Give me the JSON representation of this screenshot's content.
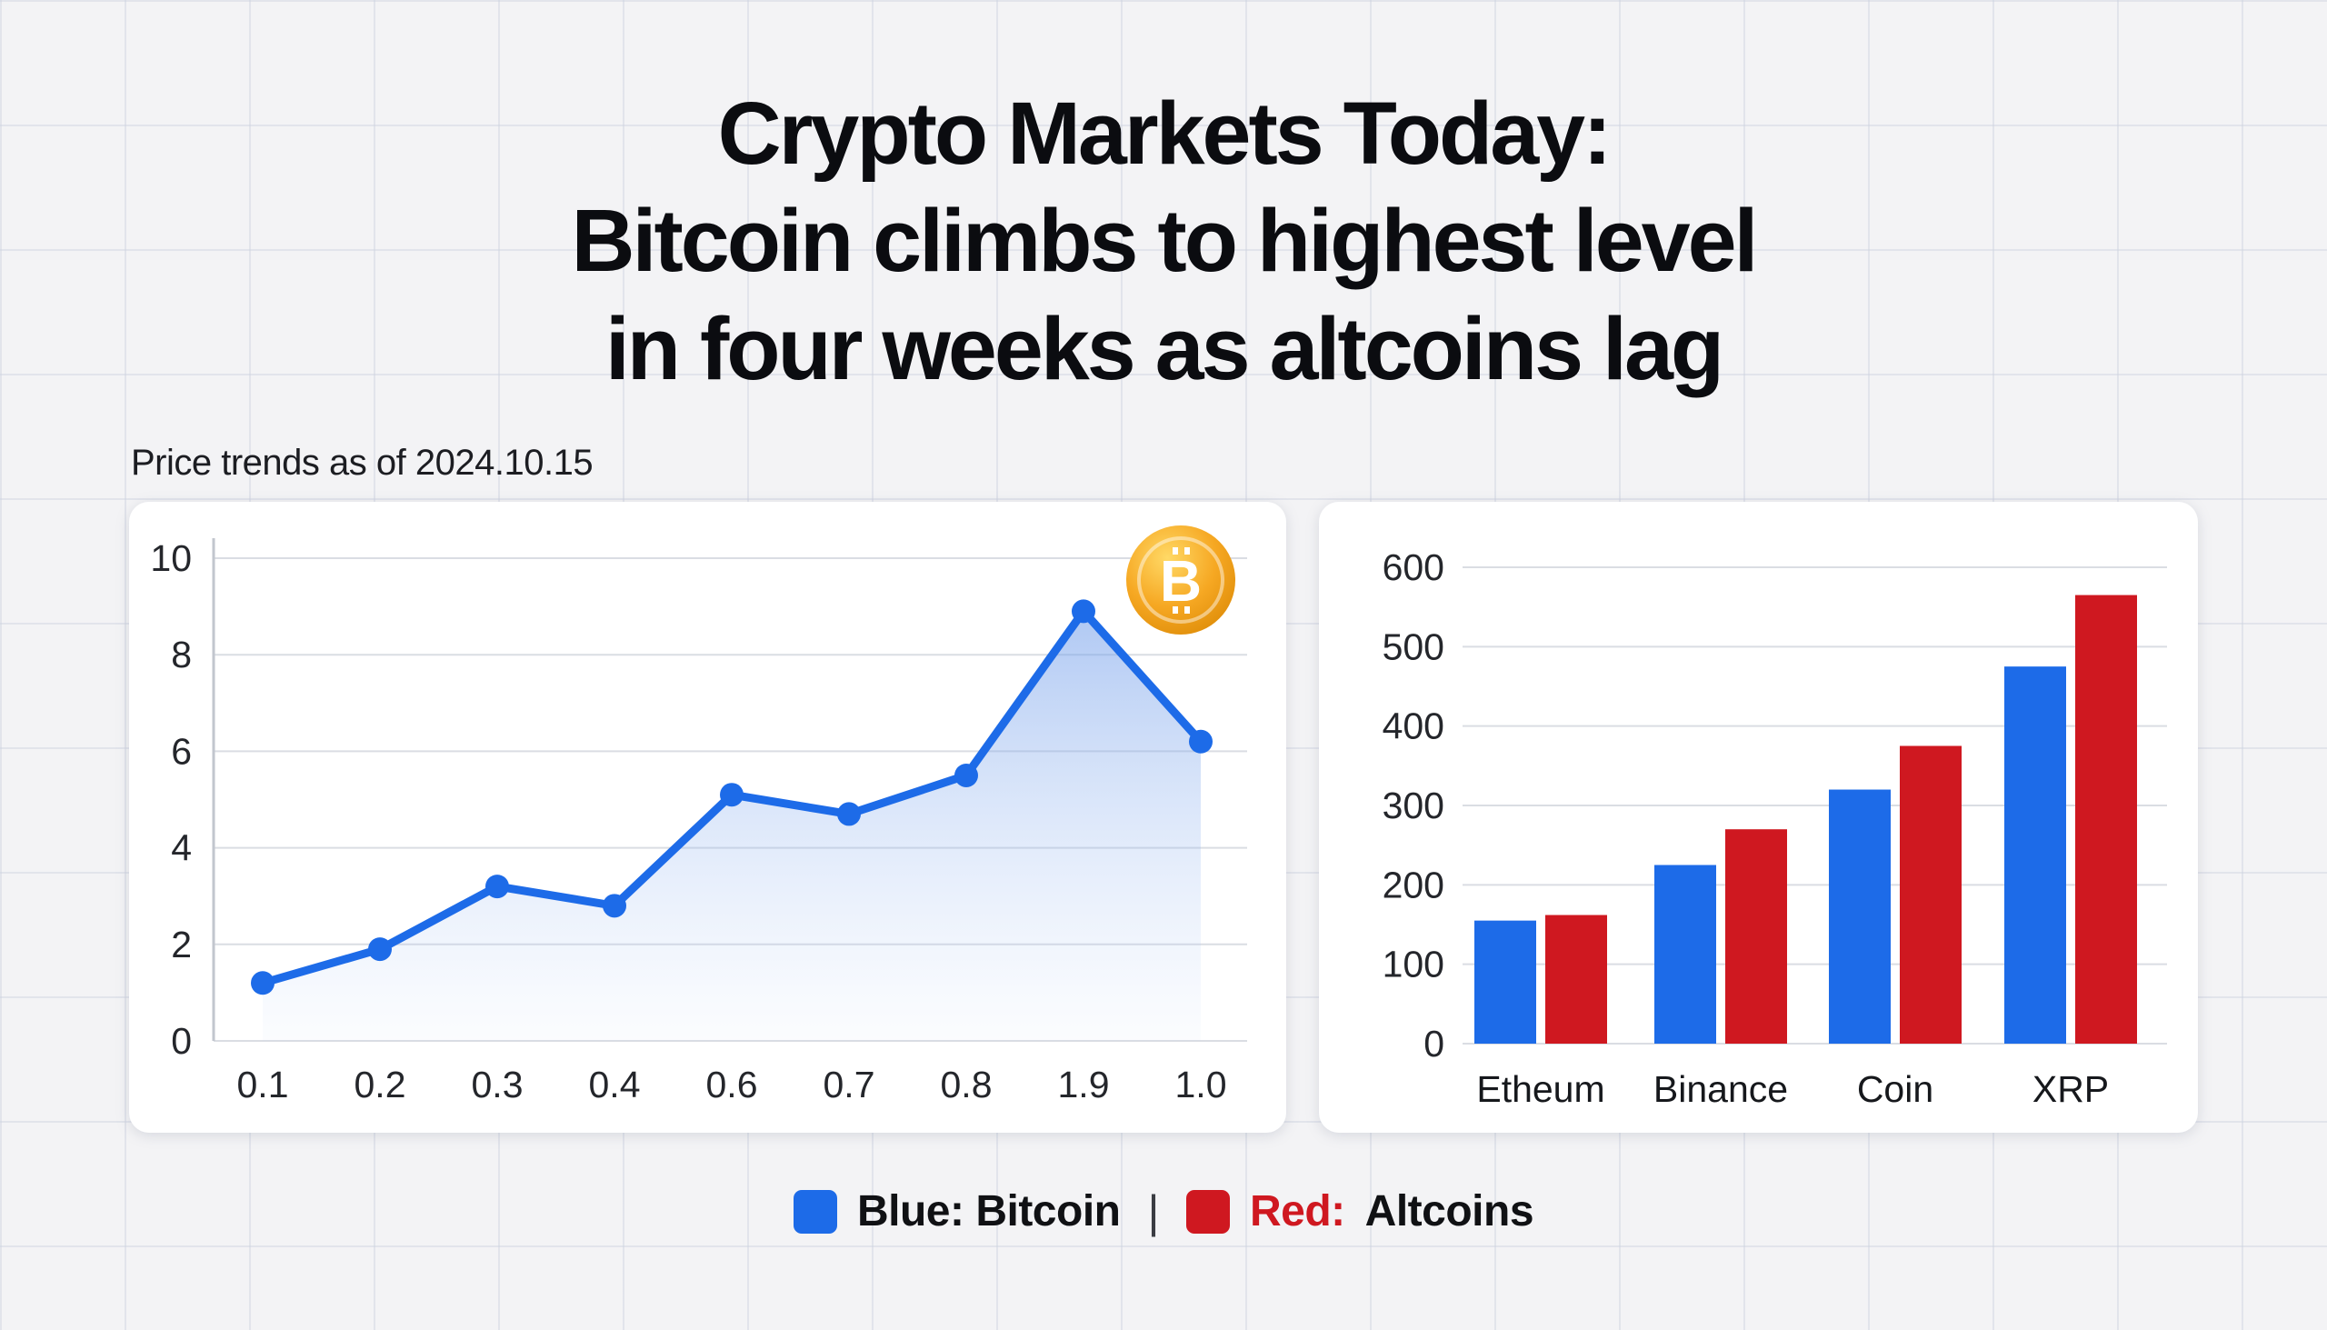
{
  "header": {
    "title_line1": "Crypto Markets Today:",
    "title_line2": "Bitcoin climbs to highest level",
    "title_line3": "in four weeks as altcoins lag",
    "subtitle": "Price trends as of 2024.10.15"
  },
  "legend": {
    "bitcoin_label": "Blue: Bitcoin",
    "separator": "|",
    "altcoins_prefix": "Red:",
    "altcoins_label": "Altcoins"
  },
  "colors": {
    "blue": "#1d6be8",
    "red": "#cf1820",
    "coin_gold": "#f6a823",
    "gridline": "#dadde3"
  },
  "chart_data": [
    {
      "type": "line",
      "series_name": "Bitcoin",
      "x": [
        "0.1",
        "0.2",
        "0.3",
        "0.4",
        "0.6",
        "0.7",
        "0.8",
        "1.9",
        "1.0"
      ],
      "values": [
        1.2,
        1.9,
        3.2,
        2.8,
        5.1,
        4.7,
        5.5,
        8.9,
        6.2
      ],
      "ylim": [
        0,
        10
      ],
      "yticks": [
        0,
        2,
        4,
        6,
        8,
        10
      ],
      "grid": true,
      "legend_position": "none",
      "marker": "circle",
      "area_fill": true,
      "icon": "bitcoin-icon"
    },
    {
      "type": "bar",
      "categories": [
        "Etheum",
        "Binance",
        "Coin",
        "XRP"
      ],
      "series": [
        {
          "name": "Bitcoin",
          "color": "#1d6be8",
          "values": [
            155,
            225,
            320,
            475
          ]
        },
        {
          "name": "Altcoins",
          "color": "#cf1820",
          "values": [
            162,
            270,
            375,
            565
          ]
        }
      ],
      "ylim": [
        0,
        600
      ],
      "yticks": [
        0,
        100,
        200,
        300,
        400,
        500,
        600
      ],
      "grid": true,
      "legend_position": "bottom-shared"
    }
  ]
}
